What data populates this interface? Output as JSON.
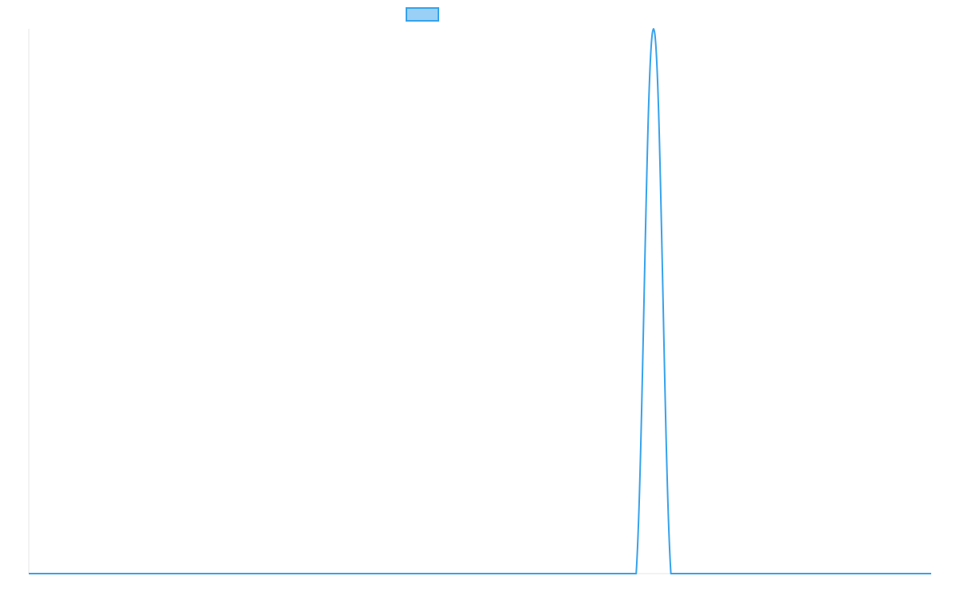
{
  "chart_data": {
    "type": "line",
    "title": "",
    "xlabel": "",
    "ylabel": "",
    "x": [
      0,
      1,
      2,
      3,
      4,
      5,
      6,
      7,
      8,
      9,
      10,
      11,
      12,
      13,
      14,
      15,
      16,
      17,
      18,
      19,
      20,
      21,
      22,
      23,
      24,
      25,
      26,
      27,
      28,
      29,
      30,
      31,
      32,
      33,
      34,
      35,
      36,
      37,
      38,
      39,
      40,
      41,
      42,
      43,
      44,
      45,
      46,
      47,
      48,
      49,
      50,
      51,
      52
    ],
    "series": [
      {
        "name": "",
        "color": "#36a2eb",
        "fill": "#9ad0f5",
        "values": [
          0,
          0,
          0,
          0,
          0,
          0,
          0,
          0,
          0,
          0,
          0,
          0,
          0,
          0,
          0,
          0,
          0,
          0,
          0,
          0,
          0,
          0,
          0,
          0,
          0,
          0,
          0,
          0,
          0,
          0,
          0,
          0,
          0,
          0,
          0,
          0,
          1,
          0,
          0,
          0,
          0,
          0,
          0,
          0,
          0,
          0,
          0,
          0,
          0,
          0,
          0,
          0,
          0
        ]
      }
    ],
    "ylim": [
      0,
      1
    ],
    "grid": false,
    "legend": "top"
  }
}
